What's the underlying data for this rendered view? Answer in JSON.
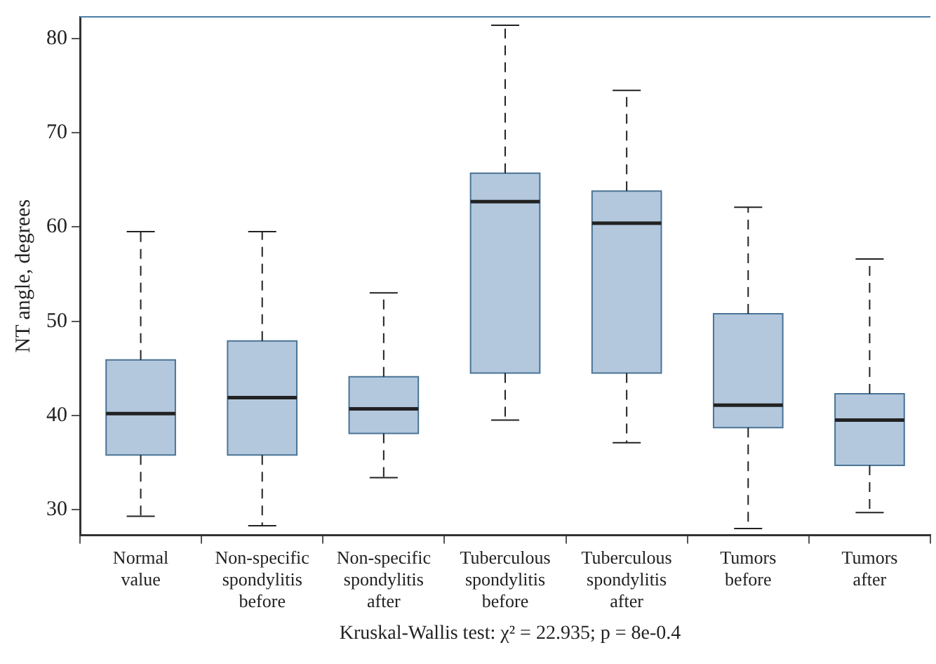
{
  "chart_data": {
    "type": "box",
    "ylabel": "NT angle, degrees",
    "categories": [
      "Normal value",
      "Non-specific spondylitis before",
      "Non-specific spondylitis after",
      "Tuberculous spondylitis before",
      "Tuberculous spondylitis after",
      "Tumors before",
      "Tumors after"
    ],
    "boxes": [
      {
        "low": 29.3,
        "q1": 35.8,
        "median": 40.2,
        "q3": 45.9,
        "high": 59.5
      },
      {
        "low": 28.3,
        "q1": 35.8,
        "median": 41.9,
        "q3": 47.9,
        "high": 59.5
      },
      {
        "low": 33.4,
        "q1": 38.1,
        "median": 40.7,
        "q3": 44.1,
        "high": 53.0
      },
      {
        "low": 39.5,
        "q1": 44.5,
        "median": 62.7,
        "q3": 65.7,
        "high": 81.4
      },
      {
        "low": 37.1,
        "q1": 44.5,
        "median": 60.4,
        "q3": 63.8,
        "high": 74.5
      },
      {
        "low": 28.0,
        "q1": 38.7,
        "median": 41.1,
        "q3": 50.8,
        "high": 62.1
      },
      {
        "low": 29.7,
        "q1": 34.7,
        "median": 39.5,
        "q3": 42.3,
        "high": 56.6
      }
    ],
    "color": "#b3c8dd",
    "ylim": [
      27.3,
      82.3
    ],
    "yticks": [
      30,
      40,
      50,
      60,
      70,
      80
    ],
    "grid": false,
    "legend": false,
    "annotations": [
      "Kruskal-Wallis test: χ² = 22.935; p = 8e-0.4"
    ]
  }
}
